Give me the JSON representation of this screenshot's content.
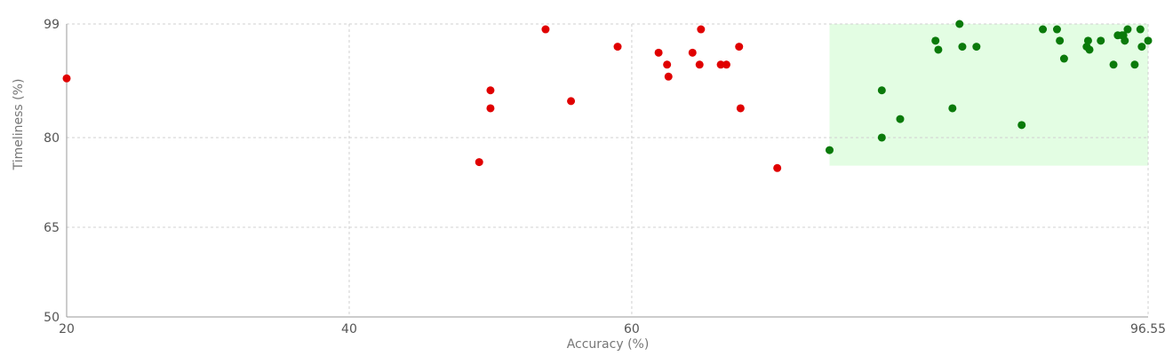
{
  "chart_data": {
    "type": "scatter",
    "title": "",
    "xlabel": "Accuracy (%)",
    "ylabel": "Timeliness (%)",
    "xlim": [
      20,
      96.55
    ],
    "ylim": [
      50,
      99
    ],
    "x_ticks": [
      20,
      40,
      60,
      96.55
    ],
    "y_ticks": [
      50,
      65,
      80,
      99
    ],
    "grid": true,
    "highlight_region": {
      "x": [
        74,
        96.55
      ],
      "y": [
        75.3,
        99
      ],
      "color": "#e3fde3"
    },
    "series": [
      {
        "color": "#e00000",
        "points": [
          [
            20,
            89.9
          ],
          [
            49.2,
            75.9
          ],
          [
            50,
            87.9
          ],
          [
            50,
            84.9
          ],
          [
            53.9,
            98.1
          ],
          [
            55.7,
            86.1
          ],
          [
            59,
            95.2
          ],
          [
            61.9,
            94.2
          ],
          [
            62.5,
            92.2
          ],
          [
            62.6,
            90.2
          ],
          [
            64.3,
            94.2
          ],
          [
            64.8,
            92.2
          ],
          [
            64.9,
            98.1
          ],
          [
            66.3,
            92.2
          ],
          [
            66.7,
            92.2
          ],
          [
            67.6,
            95.2
          ],
          [
            67.7,
            84.9
          ],
          [
            70.3,
            74.9
          ]
        ]
      },
      {
        "color": "#0a7a0a",
        "points": [
          [
            74,
            77.9
          ],
          [
            77.7,
            80
          ],
          [
            77.7,
            87.9
          ],
          [
            79,
            83.1
          ],
          [
            81.5,
            96.2
          ],
          [
            81.7,
            94.7
          ],
          [
            82.7,
            84.9
          ],
          [
            83.2,
            99
          ],
          [
            83.4,
            95.2
          ],
          [
            84.4,
            95.2
          ],
          [
            87.6,
            82.1
          ],
          [
            89.1,
            98.1
          ],
          [
            90.1,
            98.1
          ],
          [
            90.3,
            96.2
          ],
          [
            90.6,
            93.2
          ],
          [
            92.2,
            95.2
          ],
          [
            92.3,
            96.2
          ],
          [
            92.4,
            94.7
          ],
          [
            93.2,
            96.2
          ],
          [
            94.1,
            92.2
          ],
          [
            94.4,
            97.1
          ],
          [
            94.7,
            97.1
          ],
          [
            94.8,
            97.1
          ],
          [
            94.9,
            96.2
          ],
          [
            95.1,
            98.1
          ],
          [
            95.6,
            92.2
          ],
          [
            96,
            98.1
          ],
          [
            96.1,
            95.2
          ],
          [
            96.55,
            96.2
          ]
        ]
      }
    ]
  }
}
